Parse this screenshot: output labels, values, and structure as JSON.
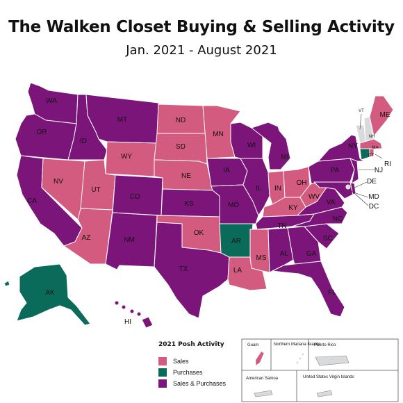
{
  "title": "The Walken Closet Buying & Selling Activity",
  "subtitle": "Jan. 2021 - August 2021",
  "colors": {
    "sales": "#d35b7f",
    "purchases": "#0b6b5a",
    "both": "#7b157a",
    "none": "#d8dadb"
  },
  "legend": {
    "title": "2021 Posh Activity",
    "sales": "Sales",
    "purchases": "Purchases",
    "both": "Sales & Purchases"
  },
  "states": {
    "WA": "WA",
    "OR": "OR",
    "CA": "CA",
    "ID": "ID",
    "NV": "NV",
    "MT": "MT",
    "WY": "WY",
    "UT": "UT",
    "AZ": "AZ",
    "CO": "CO",
    "NM": "NM",
    "ND": "ND",
    "SD": "SD",
    "NE": "NE",
    "KS": "KS",
    "OK": "OK",
    "TX": "TX",
    "MN": "MN",
    "IA": "IA",
    "MO": "MO",
    "AR": "AR",
    "LA": "LA",
    "WI": "WI",
    "IL": "IL",
    "MI": "MI",
    "IN": "IN",
    "OH": "OH",
    "KY": "KY",
    "TN": "TN",
    "MS": "MS",
    "AL": "AL",
    "GA": "GA",
    "FL": "FL",
    "SC": "SC",
    "NC": "NC",
    "VA": "VA",
    "WV": "WV",
    "PA": "PA",
    "NY": "NY",
    "VT": "VT",
    "NH": "NH",
    "ME": "ME",
    "MA": "MA",
    "RI": "RI",
    "CT": "CT",
    "NJ": "NJ",
    "DE": "DE",
    "MD": "MD",
    "DC": "DC",
    "AK": "AK",
    "HI": "HI"
  },
  "insets": {
    "guam": "Guam",
    "nmi": "Northern Mariana Islands",
    "pr": "Puerto Rico",
    "as": "American Samoa",
    "vi": "United States Virgin Islands"
  }
}
